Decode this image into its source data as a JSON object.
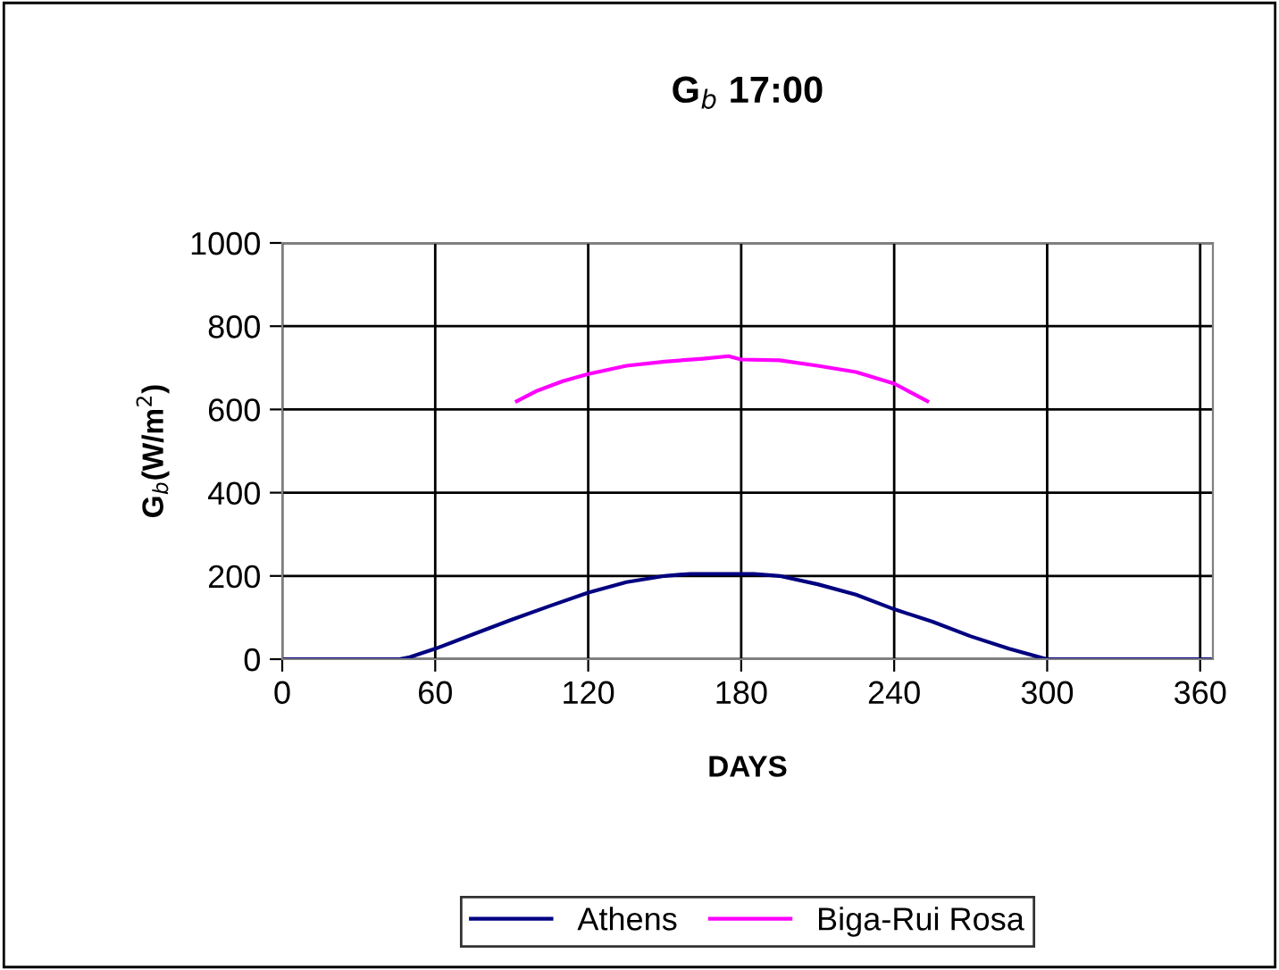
{
  "chart_data": {
    "type": "line",
    "title": "G$_{b}$ 17:00",
    "xlabel": "DAYS",
    "ylabel": "G$_{b}$(W/m$^{2}$)",
    "xlim": [
      0,
      365
    ],
    "xticks": [
      0,
      60,
      120,
      180,
      240,
      300,
      360
    ],
    "ylim": [
      0,
      1000
    ],
    "yticks": [
      0,
      200,
      400,
      600,
      800,
      1000
    ],
    "grid": true,
    "legend": "bottom",
    "marker": "none",
    "line_style": "solid",
    "series": [
      {
        "name": "Athens",
        "color": "#000080",
        "x": [
          0,
          46,
          50,
          60,
          75,
          90,
          105,
          120,
          135,
          150,
          160,
          185,
          195,
          210,
          225,
          240,
          255,
          270,
          285,
          298,
          300,
          365
        ],
        "values": [
          0,
          0,
          5,
          25,
          60,
          95,
          128,
          160,
          185,
          200,
          205,
          205,
          200,
          180,
          155,
          120,
          90,
          55,
          25,
          3,
          0,
          0
        ]
      },
      {
        "name": "Biga-Rui Rosa",
        "color": "#ff00ff",
        "x": [
          92,
          100,
          110,
          120,
          135,
          150,
          165,
          175,
          180,
          195,
          210,
          225,
          240,
          253
        ],
        "values": [
          620,
          645,
          668,
          685,
          705,
          715,
          722,
          728,
          720,
          718,
          705,
          690,
          662,
          620
        ]
      }
    ]
  }
}
